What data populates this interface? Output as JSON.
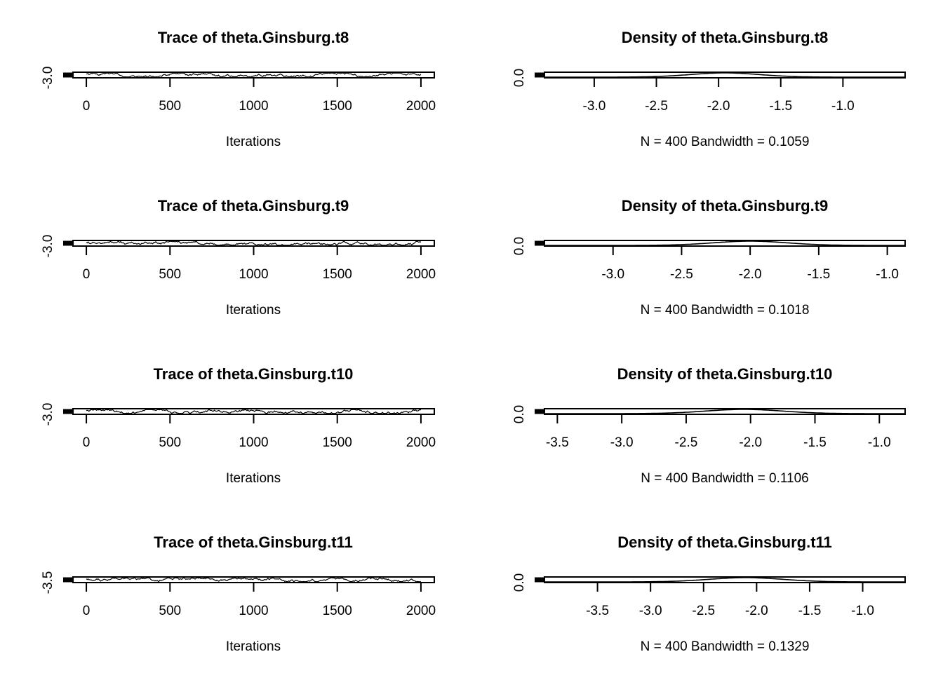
{
  "chart_data": [
    {
      "type": "line",
      "title": "Trace of theta.Ginsburg.t8",
      "xlabel": "Iterations",
      "xticks": [
        "0",
        "500",
        "1000",
        "1500",
        "2000"
      ],
      "xtick_values": [
        0,
        500,
        1000,
        1500,
        2000
      ],
      "xlim": [
        -80,
        2080
      ],
      "yticks": [
        "-3.0"
      ],
      "ytick_values": [
        -3.0
      ],
      "ylim": [
        -3.02,
        -1.0
      ],
      "series": [
        {
          "x_range": [
            0,
            2000
          ],
          "n": 400
        }
      ]
    },
    {
      "type": "line",
      "title": "Density of theta.Ginsburg.t8",
      "xlabel": "N = 400   Bandwidth = 0.1059",
      "xticks": [
        "-3.0",
        "-2.5",
        "-2.0",
        "-1.5",
        "-1.0"
      ],
      "xtick_values": [
        -3.0,
        -2.5,
        -2.0,
        -1.5,
        -1.0
      ],
      "xlim": [
        -3.4,
        -0.5
      ],
      "yticks": [
        "0.0"
      ],
      "ytick_values": [
        0.0
      ],
      "series": [
        {
          "peak_x": -1.95,
          "sd": 0.28
        }
      ]
    },
    {
      "type": "line",
      "title": "Trace of theta.Ginsburg.t9",
      "xlabel": "Iterations",
      "xticks": [
        "0",
        "500",
        "1000",
        "1500",
        "2000"
      ],
      "xtick_values": [
        0,
        500,
        1000,
        1500,
        2000
      ],
      "xlim": [
        -80,
        2080
      ],
      "yticks": [
        "-3.0"
      ],
      "ytick_values": [
        -3.0
      ],
      "ylim": [
        -3.02,
        -1.0
      ],
      "series": [
        {
          "x_range": [
            0,
            2000
          ],
          "n": 400
        }
      ]
    },
    {
      "type": "line",
      "title": "Density of theta.Ginsburg.t9",
      "xlabel": "N = 400   Bandwidth = 0.1018",
      "xticks": [
        "-3.0",
        "-2.5",
        "-2.0",
        "-1.5",
        "-1.0"
      ],
      "xtick_values": [
        -3.0,
        -2.5,
        -2.0,
        -1.5,
        -1.0
      ],
      "xlim": [
        -3.5,
        -0.87
      ],
      "yticks": [
        "0.0"
      ],
      "ytick_values": [
        0.0
      ],
      "series": [
        {
          "peak_x": -2.0,
          "sd": 0.27
        }
      ]
    },
    {
      "type": "line",
      "title": "Trace of theta.Ginsburg.t10",
      "xlabel": "Iterations",
      "xticks": [
        "0",
        "500",
        "1000",
        "1500",
        "2000"
      ],
      "xtick_values": [
        0,
        500,
        1000,
        1500,
        2000
      ],
      "xlim": [
        -80,
        2080
      ],
      "yticks": [
        "-3.0"
      ],
      "ytick_values": [
        -3.0
      ],
      "ylim": [
        -3.02,
        -1.0
      ],
      "series": [
        {
          "x_range": [
            0,
            2000
          ],
          "n": 400
        }
      ]
    },
    {
      "type": "line",
      "title": "Density of theta.Ginsburg.t10",
      "xlabel": "N = 400   Bandwidth = 0.1106",
      "xticks": [
        "-3.5",
        "-3.0",
        "-2.5",
        "-2.0",
        "-1.5",
        "-1.0"
      ],
      "xtick_values": [
        -3.5,
        -3.0,
        -2.5,
        -2.0,
        -1.5,
        -1.0
      ],
      "xlim": [
        -3.6,
        -0.8
      ],
      "yticks": [
        "0.0"
      ],
      "ytick_values": [
        0.0
      ],
      "series": [
        {
          "peak_x": -2.05,
          "sd": 0.3
        }
      ]
    },
    {
      "type": "line",
      "title": "Trace of theta.Ginsburg.t11",
      "xlabel": "Iterations",
      "xticks": [
        "0",
        "500",
        "1000",
        "1500",
        "2000"
      ],
      "xtick_values": [
        0,
        500,
        1000,
        1500,
        2000
      ],
      "xlim": [
        -80,
        2080
      ],
      "yticks": [
        "-3.5"
      ],
      "ytick_values": [
        -3.5
      ],
      "ylim": [
        -3.52,
        -1.0
      ],
      "series": [
        {
          "x_range": [
            0,
            2000
          ],
          "n": 400
        }
      ]
    },
    {
      "type": "line",
      "title": "Density of theta.Ginsburg.t11",
      "xlabel": "N = 400   Bandwidth = 0.1329",
      "xticks": [
        "-3.5",
        "-3.0",
        "-2.5",
        "-2.0",
        "-1.5",
        "-1.0"
      ],
      "xtick_values": [
        -3.5,
        -3.0,
        -2.5,
        -2.0,
        -1.5,
        -1.0
      ],
      "xlim": [
        -4.0,
        -0.6
      ],
      "yticks": [
        "0.0"
      ],
      "ytick_values": [
        0.0
      ],
      "series": [
        {
          "peak_x": -2.1,
          "sd": 0.35
        }
      ]
    }
  ]
}
